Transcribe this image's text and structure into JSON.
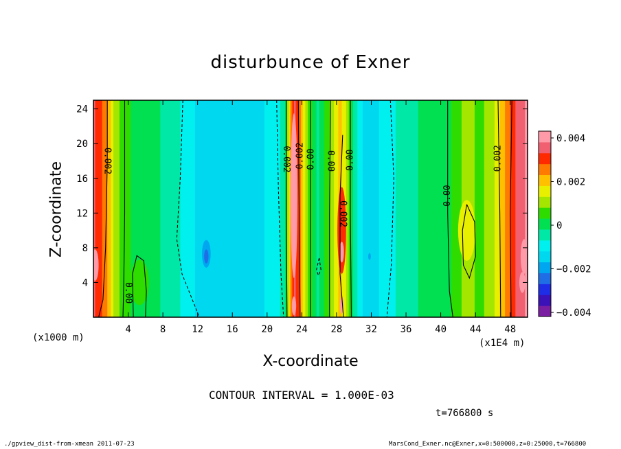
{
  "title": "disturbunce of Exner",
  "chart_data": {
    "type": "heatmap",
    "title": "disturbunce of Exner",
    "xlabel": "X-coordinate",
    "ylabel": "Z-coordinate",
    "x_unit_left": "(x1000 m)",
    "x_unit_right": "(x1E4 m)",
    "xlim": [
      0,
      50
    ],
    "ylim": [
      0,
      25
    ],
    "x_ticks": [
      4,
      8,
      12,
      16,
      20,
      24,
      28,
      32,
      36,
      40,
      44,
      48
    ],
    "y_ticks": [
      4,
      8,
      12,
      16,
      20,
      24
    ],
    "colorbar": {
      "range": [
        -0.004,
        0.004
      ],
      "tick_labels": [
        "0.004",
        "0.002",
        "0",
        "−0.002",
        "−0.004"
      ],
      "levels": [
        {
          "min": -0.004,
          "max": -0.0035,
          "color": "#7b1fa2"
        },
        {
          "min": -0.0035,
          "max": -0.003,
          "color": "#3a12b8"
        },
        {
          "min": -0.003,
          "max": -0.0025,
          "color": "#1e2ee6"
        },
        {
          "min": -0.0025,
          "max": -0.002,
          "color": "#1f6ee6"
        },
        {
          "min": -0.002,
          "max": -0.0015,
          "color": "#00a6f0"
        },
        {
          "min": -0.0015,
          "max": -0.001,
          "color": "#00d8f0"
        },
        {
          "min": -0.001,
          "max": -0.0005,
          "color": "#00f0f0"
        },
        {
          "min": -0.0005,
          "max": 0.0,
          "color": "#00e8a6"
        },
        {
          "min": 0.0,
          "max": 0.0005,
          "color": "#00e050"
        },
        {
          "min": 0.0005,
          "max": 0.001,
          "color": "#2edc00"
        },
        {
          "min": 0.001,
          "max": 0.0015,
          "color": "#a5e600"
        },
        {
          "min": 0.0015,
          "max": 0.002,
          "color": "#e8f000"
        },
        {
          "min": 0.002,
          "max": 0.0025,
          "color": "#ffc000"
        },
        {
          "min": 0.0025,
          "max": 0.003,
          "color": "#ff7a00"
        },
        {
          "min": 0.003,
          "max": 0.0035,
          "color": "#ff2a00"
        },
        {
          "min": 0.0035,
          "max": 0.004,
          "color": "#f06070"
        },
        {
          "min": 0.004,
          "max": 0.0045,
          "color": "#ff9aa8"
        }
      ]
    },
    "columns": [
      {
        "x": 0.0,
        "value": 0.0036
      },
      {
        "x": 0.8,
        "value": 0.0031
      },
      {
        "x": 1.5,
        "value": 0.0026
      },
      {
        "x": 2.4,
        "value": 0.0013
      },
      {
        "x": 3.5,
        "value": 0.0007
      },
      {
        "x": 5.0,
        "value": 0.0003
      },
      {
        "x": 7.0,
        "value": 0.0001
      },
      {
        "x": 9.0,
        "value": -0.0002
      },
      {
        "x": 10.5,
        "value": -0.0007
      },
      {
        "x": 12.0,
        "value": -0.0011
      },
      {
        "x": 13.0,
        "value": -0.0013
      },
      {
        "x": 16.0,
        "value": -0.0012
      },
      {
        "x": 19.0,
        "value": -0.0011
      },
      {
        "x": 21.0,
        "value": -0.0008
      },
      {
        "x": 22.0,
        "value": -0.0001
      },
      {
        "x": 22.6,
        "value": 0.0022
      },
      {
        "x": 23.1,
        "value": 0.0037
      },
      {
        "x": 23.5,
        "value": 0.0033
      },
      {
        "x": 24.1,
        "value": 0.0018
      },
      {
        "x": 24.8,
        "value": 0.0008
      },
      {
        "x": 25.8,
        "value": -0.0001
      },
      {
        "x": 27.0,
        "value": 0.0008
      },
      {
        "x": 27.8,
        "value": 0.0017
      },
      {
        "x": 28.4,
        "value": 0.0022
      },
      {
        "x": 29.2,
        "value": 0.0013
      },
      {
        "x": 30.0,
        "value": -0.0002
      },
      {
        "x": 31.0,
        "value": -0.001
      },
      {
        "x": 32.5,
        "value": -0.0011
      },
      {
        "x": 34.0,
        "value": -0.0007
      },
      {
        "x": 36.0,
        "value": -0.0002
      },
      {
        "x": 38.0,
        "value": 0.0001
      },
      {
        "x": 40.0,
        "value": 0.0002
      },
      {
        "x": 41.5,
        "value": 0.0006
      },
      {
        "x": 43.0,
        "value": 0.0013
      },
      {
        "x": 44.5,
        "value": 0.0008
      },
      {
        "x": 46.0,
        "value": 0.0014
      },
      {
        "x": 47.0,
        "value": 0.0022
      },
      {
        "x": 47.8,
        "value": 0.0029
      },
      {
        "x": 48.6,
        "value": 0.0035
      },
      {
        "x": 49.3,
        "value": 0.0039
      },
      {
        "x": 50.0,
        "value": 0.0041
      }
    ],
    "contour_labels": [
      {
        "text": "0.002",
        "x": 1.6,
        "z": 18.0,
        "rotate": 90
      },
      {
        "text": "0.00",
        "x": 4.0,
        "z": 2.8,
        "rotate": 90
      },
      {
        "text": "0.002",
        "x": 22.2,
        "z": 18.2,
        "rotate": 90
      },
      {
        "text": "0.002",
        "x": 23.8,
        "z": 18.6,
        "rotate": -90
      },
      {
        "text": "0.00",
        "x": 25.1,
        "z": 18.2,
        "rotate": -90
      },
      {
        "text": "0.00",
        "x": 27.3,
        "z": 18.0,
        "rotate": 90
      },
      {
        "text": "0.00",
        "x": 29.6,
        "z": 18.1,
        "rotate": -90
      },
      {
        "text": "0.002",
        "x": 28.7,
        "z": 11.9,
        "rotate": 90
      },
      {
        "text": "0.00",
        "x": 40.8,
        "z": 14.0,
        "rotate": -90
      },
      {
        "text": "0.002",
        "x": 46.6,
        "z": 18.3,
        "rotate": -90
      }
    ],
    "contour_interval": "1.000E-03"
  },
  "annotations": {
    "contour_interval_text": "CONTOUR INTERVAL = 1.000E-03",
    "time_text": "t=766800 s",
    "footer_left": "./gpview_dist-from-xmean  2011-07-23",
    "footer_right": "MarsCond_Exner.nc@Exner,x=0:500000,z=0:25000,t=766800"
  }
}
